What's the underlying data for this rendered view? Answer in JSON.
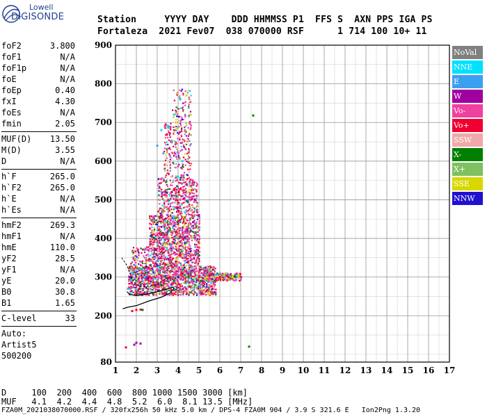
{
  "logo": {
    "line1": "Lowell",
    "line2": "DIGISONDE"
  },
  "header": {
    "labels": "Station     YYYY DAY    DDD HHMMSS P1  FFS S  AXN PPS IGA PS",
    "values": "Fortaleza  2021 Fev07  038 070000 RSF      1 714 100 10+ 11"
  },
  "params": {
    "group1": [
      {
        "k": "foF2",
        "v": "3.800"
      },
      {
        "k": "foF1",
        "v": "N/A"
      },
      {
        "k": "foF1p",
        "v": "N/A"
      },
      {
        "k": "foE",
        "v": "N/A"
      },
      {
        "k": "foEp",
        "v": "0.40"
      },
      {
        "k": "fxI",
        "v": "4.30"
      },
      {
        "k": "foEs",
        "v": "N/A"
      },
      {
        "k": "fmin",
        "v": "2.05"
      }
    ],
    "group2": [
      {
        "k": "MUF(D)",
        "v": "13.50"
      },
      {
        "k": "M(D)",
        "v": "3.55"
      },
      {
        "k": "D",
        "v": "N/A"
      }
    ],
    "group3": [
      {
        "k": "h`F",
        "v": "265.0"
      },
      {
        "k": "h`F2",
        "v": "265.0"
      },
      {
        "k": "h`E",
        "v": "N/A"
      },
      {
        "k": "h`Es",
        "v": "N/A"
      }
    ],
    "group4": [
      {
        "k": "hmF2",
        "v": "269.3"
      },
      {
        "k": "hmF1",
        "v": "N/A"
      },
      {
        "k": "hmE",
        "v": "110.0"
      },
      {
        "k": "yF2",
        "v": "28.5"
      },
      {
        "k": "yF1",
        "v": "N/A"
      },
      {
        "k": "yE",
        "v": "20.0"
      },
      {
        "k": "B0",
        "v": "30.8"
      },
      {
        "k": "B1",
        "v": "1.65"
      }
    ],
    "group5": [
      {
        "k": "C-level",
        "v": "33"
      }
    ],
    "auto": [
      "Auto:",
      "Artist5",
      "500200"
    ]
  },
  "legend": [
    {
      "label": "NoVal",
      "color": "#808080"
    },
    {
      "label": "NNE",
      "color": "#00e0ff"
    },
    {
      "label": "E",
      "color": "#3ca0f0"
    },
    {
      "label": "W",
      "color": "#a000a0"
    },
    {
      "label": "Vo-",
      "color": "#f040a0"
    },
    {
      "label": "Vo+",
      "color": "#f00030"
    },
    {
      "label": "SSW",
      "color": "#f0a8a8"
    },
    {
      "label": "X-",
      "color": "#008000"
    },
    {
      "label": "X+",
      "color": "#80c060"
    },
    {
      "label": "SSE",
      "color": "#d8d800"
    },
    {
      "label": "NNW",
      "color": "#2010d0"
    }
  ],
  "footer": {
    "d_row": "D     100  200  400  600  800 1000 1500 3000 [km]",
    "muf_row": "MUF   4.1  4.2  4.4  4.8  5.2  6.0  8.1 13.5 [MHz]",
    "info": "FZA0M_2021038070000.RSF / 320fx256h 50 kHz 5.0 km / DPS-4 FZA0M 904 / 3.9 S 321.6 E   Ion2Png 1.3.20"
  },
  "chart_data": {
    "type": "scatter",
    "xlim": [
      1,
      17
    ],
    "ylim": [
      80,
      900
    ],
    "x_ticks": [
      1,
      2,
      3,
      4,
      5,
      6,
      7,
      8,
      9,
      10,
      11,
      12,
      13,
      14,
      15,
      16,
      17
    ],
    "y_ticks": [
      80,
      200,
      300,
      400,
      500,
      600,
      700,
      800,
      900
    ],
    "grid": true,
    "series": [
      {
        "name": "Vo-",
        "color": "#f040a0",
        "points": [
          [
            3.0,
            300
          ],
          [
            3.3,
            320
          ],
          [
            3.6,
            340
          ],
          [
            3.9,
            360
          ],
          [
            4.2,
            380
          ],
          [
            4.5,
            400
          ],
          [
            4.2,
            420
          ],
          [
            3.8,
            440
          ],
          [
            4.0,
            460
          ],
          [
            4.3,
            350
          ],
          [
            4.6,
            330
          ],
          [
            3.5,
            280
          ],
          [
            2.8,
            300
          ],
          [
            3.1,
            360
          ],
          [
            4.8,
            320
          ],
          [
            5.2,
            310
          ],
          [
            4.0,
            300
          ],
          [
            3.4,
            400
          ],
          [
            4.1,
            500
          ],
          [
            3.9,
            520
          ]
        ]
      },
      {
        "name": "Vo+",
        "color": "#f00030",
        "points": [
          [
            2.0,
            215
          ],
          [
            2.2,
            216
          ],
          [
            1.8,
            212
          ],
          [
            2.6,
            290
          ],
          [
            3.0,
            280
          ],
          [
            3.6,
            300
          ],
          [
            4.2,
            310
          ],
          [
            5.0,
            300
          ],
          [
            5.5,
            305
          ],
          [
            6.0,
            300
          ],
          [
            6.4,
            300
          ],
          [
            1.5,
            118
          ]
        ]
      },
      {
        "name": "W",
        "color": "#a000a0",
        "points": [
          [
            2.0,
            130
          ],
          [
            1.9,
            125
          ],
          [
            2.2,
            128
          ],
          [
            3.7,
            520
          ],
          [
            3.4,
            520
          ],
          [
            4.0,
            480
          ],
          [
            4.6,
            420
          ],
          [
            3.2,
            430
          ],
          [
            2.9,
            370
          ],
          [
            4.4,
            540
          ],
          [
            5.0,
            460
          ],
          [
            4.8,
            500
          ]
        ]
      },
      {
        "name": "NNE",
        "color": "#00e0ff",
        "points": [
          [
            3.5,
            690
          ],
          [
            3.8,
            720
          ],
          [
            4.2,
            600
          ],
          [
            4.0,
            560
          ],
          [
            2.4,
            300
          ],
          [
            1.8,
            310
          ],
          [
            3.2,
            680
          ]
        ]
      },
      {
        "name": "E",
        "color": "#3ca0f0",
        "points": [
          [
            1.6,
            270
          ],
          [
            2.2,
            320
          ],
          [
            3.0,
            640
          ],
          [
            4.1,
            760
          ],
          [
            3.7,
            650
          ],
          [
            2.9,
            350
          ],
          [
            3.3,
            620
          ]
        ]
      },
      {
        "name": "SSE",
        "color": "#d8d800",
        "points": [
          [
            5.8,
            302
          ],
          [
            6.2,
            305
          ],
          [
            6.6,
            300
          ],
          [
            6.9,
            301
          ],
          [
            4.4,
            770
          ],
          [
            4.6,
            720
          ],
          [
            3.9,
            700
          ],
          [
            5.4,
            300
          ]
        ]
      },
      {
        "name": "X-",
        "color": "#008000",
        "points": [
          [
            3.2,
            280
          ],
          [
            3.8,
            290
          ],
          [
            4.5,
            300
          ],
          [
            5.1,
            290
          ],
          [
            7.4,
            120
          ],
          [
            2.3,
            215
          ],
          [
            7.6,
            718
          ]
        ]
      },
      {
        "name": "X+",
        "color": "#80c060",
        "points": [
          [
            5.5,
            315
          ],
          [
            6.0,
            310
          ],
          [
            2.8,
            275
          ],
          [
            4.3,
            285
          ]
        ]
      },
      {
        "name": "SSW",
        "color": "#f0a8a8",
        "points": [
          [
            5.6,
            300
          ],
          [
            6.3,
            310
          ],
          [
            4.9,
            330
          ],
          [
            3.6,
            305
          ]
        ]
      },
      {
        "name": "NNW",
        "color": "#2010d0",
        "points": [
          [
            1.7,
            300
          ],
          [
            4.0,
            300
          ],
          [
            3.0,
            330
          ]
        ]
      },
      {
        "name": "NoVal",
        "color": "#808080",
        "points": [
          [
            2.0,
            265
          ],
          [
            3.1,
            310
          ],
          [
            4.4,
            390
          ],
          [
            3.7,
            300
          ]
        ]
      }
    ],
    "profile_curve": [
      [
        1.55,
        262
      ],
      [
        1.7,
        255
      ],
      [
        2.0,
        252
      ],
      [
        2.5,
        256
      ],
      [
        3.0,
        262
      ],
      [
        3.4,
        268
      ],
      [
        3.75,
        274
      ],
      [
        3.8,
        270
      ],
      [
        3.6,
        258
      ],
      [
        3.2,
        248
      ],
      [
        2.6,
        238
      ],
      [
        2.0,
        226
      ],
      [
        1.6,
        222
      ],
      [
        1.35,
        218
      ]
    ],
    "trace_curve": [
      [
        1.3,
        350
      ],
      [
        1.55,
        330
      ],
      [
        1.7,
        310
      ],
      [
        1.85,
        290
      ],
      [
        2.0,
        280
      ],
      [
        2.3,
        275
      ],
      [
        2.7,
        277
      ],
      [
        3.0,
        282
      ],
      [
        3.3,
        292
      ],
      [
        3.6,
        300
      ]
    ]
  }
}
